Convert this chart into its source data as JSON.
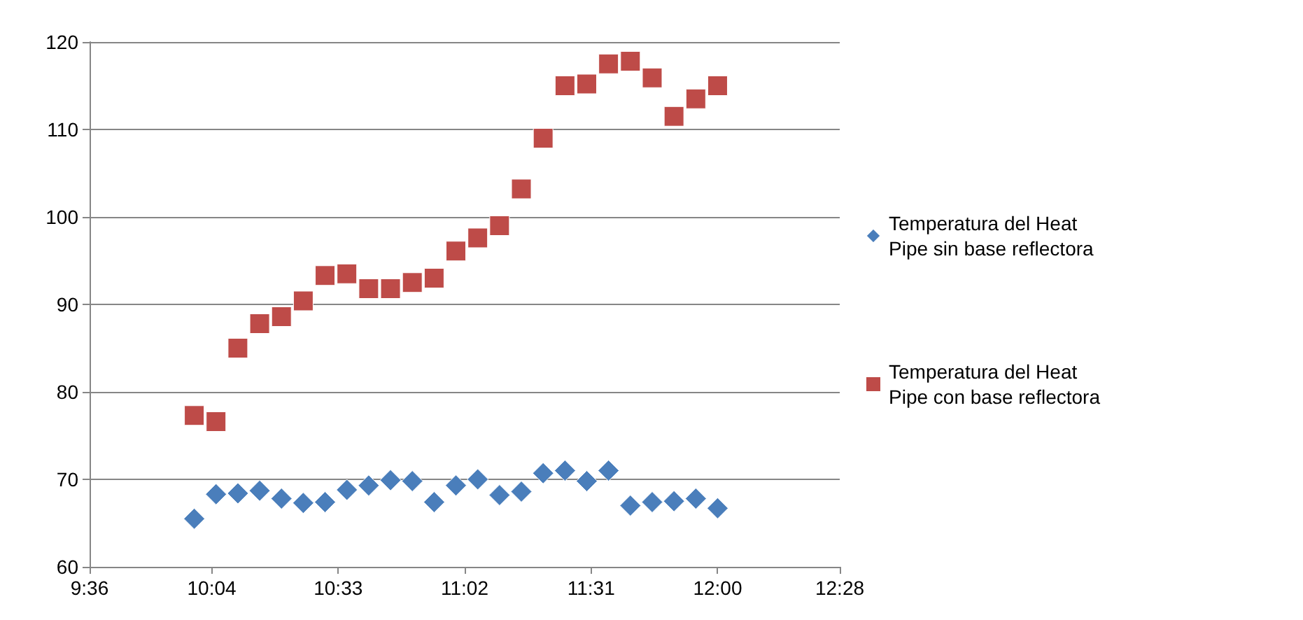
{
  "chart_data": {
    "type": "scatter",
    "x": [
      10,
      10.0833,
      10.1667,
      10.25,
      10.3333,
      10.4167,
      10.5,
      10.5833,
      10.6667,
      10.75,
      10.8333,
      10.9167,
      11,
      11.0833,
      11.1667,
      11.25,
      11.3333,
      11.4167,
      11.5,
      11.5833,
      11.6667,
      11.75,
      11.8333,
      11.9167,
      12
    ],
    "series": [
      {
        "name": "Temperatura del Heat Pipe sin base reflectora",
        "color": "#4a7ebb",
        "marker": "diamond",
        "values": [
          65.5,
          68.3,
          68.4,
          68.7,
          67.8,
          67.3,
          67.4,
          68.8,
          69.3,
          69.9,
          69.8,
          67.4,
          69.3,
          70,
          68.2,
          68.6,
          70.7,
          71,
          69.8,
          71,
          67,
          67.4,
          67.5,
          67.8,
          66.7
        ]
      },
      {
        "name": "Temperatura del Heat Pipe con base reflectora",
        "color": "#be4b48",
        "marker": "square",
        "values": [
          77.3,
          76.6,
          85,
          87.8,
          88.6,
          90.4,
          93.3,
          93.5,
          91.8,
          91.8,
          92.5,
          93,
          96.1,
          97.6,
          99,
          103.2,
          109,
          115,
          115.2,
          117.5,
          117.8,
          115.9,
          111.5,
          113.5,
          115
        ]
      }
    ],
    "xlim": [
      9.6,
      12.4667
    ],
    "xticks": [
      {
        "value": 9.6,
        "label": "9:36"
      },
      {
        "value": 10.0667,
        "label": "10:04"
      },
      {
        "value": 10.55,
        "label": "10:33"
      },
      {
        "value": 11.0333,
        "label": "11:02"
      },
      {
        "value": 11.5167,
        "label": "11:31"
      },
      {
        "value": 12,
        "label": "12:00"
      },
      {
        "value": 12.4667,
        "label": "12:28"
      }
    ],
    "ylim": [
      60,
      120
    ],
    "yticks": [
      60,
      70,
      80,
      90,
      100,
      110,
      120
    ],
    "grid": "y",
    "legend": "right"
  }
}
